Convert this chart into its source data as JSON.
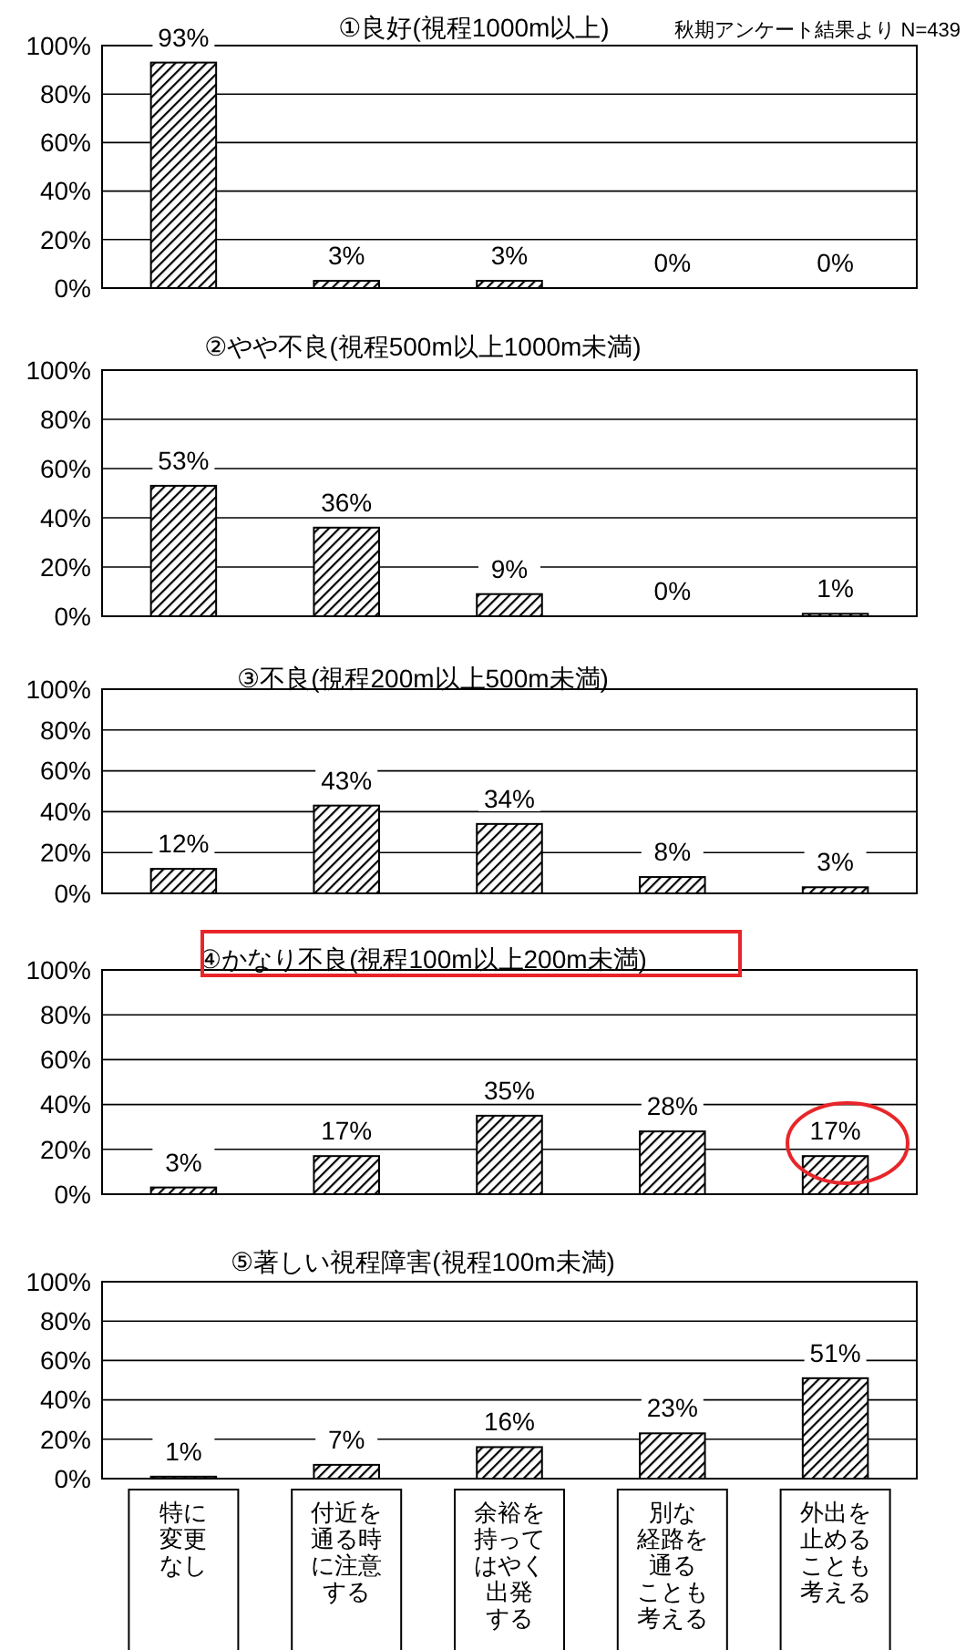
{
  "chart_data": [
    {
      "type": "bar",
      "title": "①良好(視程1000m以上)",
      "annotations": [
        "秋期アンケート結果より N=439"
      ],
      "categories": [
        "特に変更なし",
        "付近を通る時に注意する",
        "余裕を持ってはやく出発する",
        "別な経路を通ることも考える",
        "外出を止めることも考える"
      ],
      "values": [
        93,
        3,
        3,
        0,
        0
      ],
      "value_labels": [
        "93%",
        "3%",
        "3%",
        "0%",
        "0%"
      ],
      "color": "#000000",
      "ylim": [
        0,
        100
      ],
      "yticks": [
        {
          "value": 0,
          "label": "0%"
        },
        {
          "value": 20,
          "label": "20%"
        },
        {
          "value": 40,
          "label": "40%"
        },
        {
          "value": 60,
          "label": "60%"
        },
        {
          "value": 80,
          "label": "80%"
        },
        {
          "value": 100,
          "label": "100%"
        }
      ],
      "grid": "y",
      "tick_labels": "y"
    },
    {
      "type": "bar",
      "title": "②やや不良(視程500m以上1000m未満)",
      "categories": [
        "特に変更なし",
        "付近を通る時に注意する",
        "余裕を持ってはやく出発する",
        "別な経路を通ることも考える",
        "外出を止めることも考える"
      ],
      "values": [
        53,
        36,
        9,
        0,
        1
      ],
      "value_labels": [
        "53%",
        "36%",
        "9%",
        "0%",
        "1%"
      ],
      "color": "#000000",
      "ylim": [
        0,
        100
      ],
      "yticks": [
        {
          "value": 0,
          "label": "0%"
        },
        {
          "value": 20,
          "label": "20%"
        },
        {
          "value": 40,
          "label": "40%"
        },
        {
          "value": 60,
          "label": "60%"
        },
        {
          "value": 80,
          "label": "80%"
        },
        {
          "value": 100,
          "label": "100%"
        }
      ],
      "grid": "y",
      "tick_labels": "y"
    },
    {
      "type": "bar",
      "title": "③不良(視程200m以上500m未満)",
      "categories": [
        "特に変更なし",
        "付近を通る時に注意する",
        "余裕を持ってはやく出発する",
        "別な経路を通ることも考える",
        "外出を止めることも考える"
      ],
      "values": [
        12,
        43,
        34,
        8,
        3
      ],
      "value_labels": [
        "12%",
        "43%",
        "34%",
        "8%",
        "3%"
      ],
      "color": "#000000",
      "ylim": [
        0,
        100
      ],
      "yticks": [
        {
          "value": 0,
          "label": "0%"
        },
        {
          "value": 20,
          "label": "20%"
        },
        {
          "value": 40,
          "label": "40%"
        },
        {
          "value": 60,
          "label": "60%"
        },
        {
          "value": 80,
          "label": "80%"
        },
        {
          "value": 100,
          "label": "100%"
        }
      ],
      "grid": "y",
      "tick_labels": "y"
    },
    {
      "type": "bar",
      "title": "④かなり不良(視程100m以上200m未満)",
      "categories": [
        "特に変更なし",
        "付近を通る時に注意する",
        "余裕を持ってはやく出発する",
        "別な経路を通ることも考える",
        "外出を止めることも考える"
      ],
      "values": [
        3,
        17,
        35,
        28,
        17
      ],
      "value_labels": [
        "3%",
        "17%",
        "35%",
        "28%",
        "17%"
      ],
      "color": "#000000",
      "ylim": [
        0,
        100
      ],
      "yticks": [
        {
          "value": 0,
          "label": "0%"
        },
        {
          "value": 20,
          "label": "20%"
        },
        {
          "value": 40,
          "label": "40%"
        },
        {
          "value": 60,
          "label": "60%"
        },
        {
          "value": 80,
          "label": "80%"
        },
        {
          "value": 100,
          "label": "100%"
        }
      ],
      "grid": "y",
      "tick_labels": "y"
    },
    {
      "type": "bar",
      "title": "⑤著しい視程障害(視程100m未満)",
      "categories": [
        "特に変更なし",
        "付近を通る時に注意する",
        "余裕を持ってはやく出発する",
        "別な経路を通ることも考える",
        "外出を止めることも考える"
      ],
      "values": [
        1,
        7,
        16,
        23,
        51
      ],
      "value_labels": [
        "1%",
        "7%",
        "16%",
        "23%",
        "51%"
      ],
      "color": "#000000",
      "ylim": [
        0,
        100
      ],
      "yticks": [
        {
          "value": 0,
          "label": "0%"
        },
        {
          "value": 20,
          "label": "20%"
        },
        {
          "value": 40,
          "label": "40%"
        },
        {
          "value": 60,
          "label": "60%"
        },
        {
          "value": 80,
          "label": "80%"
        },
        {
          "value": 100,
          "label": "100%"
        }
      ],
      "grid": "y"
    }
  ]
}
